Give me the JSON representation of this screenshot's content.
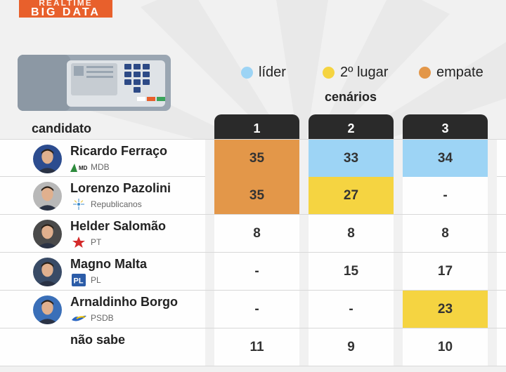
{
  "brand": {
    "line1": "REALTIME",
    "line2": "BIG DATA",
    "color": "#e8602c"
  },
  "legend": [
    {
      "label": "líder",
      "color": "#9dd4f5"
    },
    {
      "label": "2º lugar",
      "color": "#f5d441"
    },
    {
      "label": "empate",
      "color": "#e39749"
    }
  ],
  "chart_data": {
    "type": "table",
    "title": "cenários",
    "row_header": "candidato",
    "columns": [
      "1",
      "2",
      "3"
    ],
    "rows": [
      {
        "name": "Ricardo Ferraço",
        "party": "MDB",
        "values": [
          "35",
          "33",
          "34"
        ],
        "status": [
          "empate",
          "lider",
          "lider"
        ],
        "avatar_color": "#2c4c8f",
        "icon": "mdb-icon"
      },
      {
        "name": "Lorenzo Pazolini",
        "party": "Republicanos",
        "values": [
          "35",
          "27",
          "-"
        ],
        "status": [
          "empate",
          "segundo",
          ""
        ],
        "avatar_color": "#b8b8b8",
        "icon": "republicanos-icon"
      },
      {
        "name": "Helder Salomão",
        "party": "PT",
        "values": [
          "8",
          "8",
          "8"
        ],
        "status": [
          "",
          "",
          ""
        ],
        "avatar_color": "#4a4a4a",
        "icon": "pt-star-icon"
      },
      {
        "name": "Magno Malta",
        "party": "PL",
        "values": [
          "-",
          "15",
          "17"
        ],
        "status": [
          "",
          "",
          ""
        ],
        "avatar_color": "#394b66",
        "icon": "pl-icon"
      },
      {
        "name": "Arnaldinho Borgo",
        "party": "PSDB",
        "values": [
          "-",
          "-",
          "23"
        ],
        "status": [
          "",
          "",
          "segundo"
        ],
        "avatar_color": "#3a6fb8",
        "icon": "psdb-icon"
      },
      {
        "name": "não sabe",
        "party": "",
        "values": [
          "11",
          "9",
          "10"
        ],
        "status": [
          "",
          "",
          ""
        ],
        "avatar_color": "",
        "icon": ""
      }
    ]
  }
}
